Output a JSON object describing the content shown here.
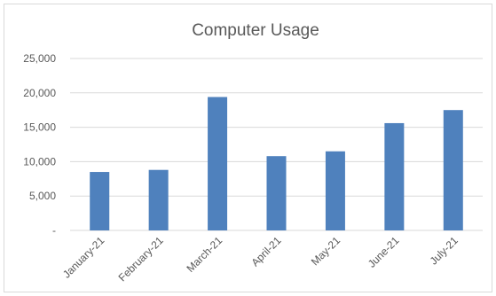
{
  "chart_data": {
    "type": "bar",
    "title": "Computer Usage",
    "xlabel": "",
    "ylabel": "",
    "categories": [
      "January-21",
      "February-21",
      "March-21",
      "April-21",
      "May-21",
      "June-21",
      "July-21"
    ],
    "values": [
      8500,
      8800,
      19400,
      10800,
      11500,
      15600,
      17500
    ],
    "ylim": [
      0,
      25000
    ],
    "yticks": [
      0,
      5000,
      10000,
      15000,
      20000,
      25000
    ],
    "ytick_labels": [
      "-",
      "5,000",
      "10,000",
      "15,000",
      "20,000",
      "25,000"
    ],
    "grid": true,
    "legend": "none",
    "colors": {
      "bar": "#4f81bd",
      "grid": "#d9d9d9",
      "text": "#595959"
    }
  }
}
